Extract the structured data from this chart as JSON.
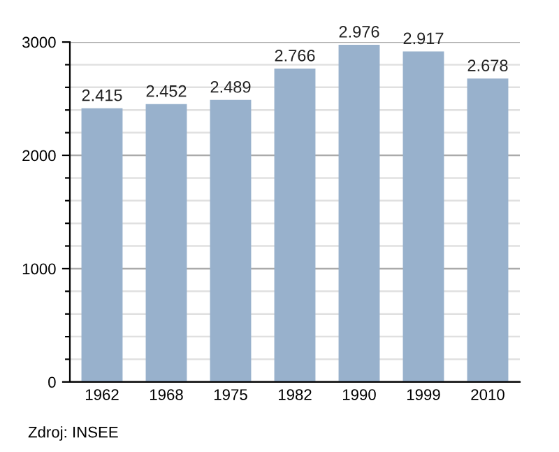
{
  "chart_data": {
    "type": "bar",
    "categories": [
      "1962",
      "1968",
      "1975",
      "1982",
      "1990",
      "1999",
      "2010"
    ],
    "values": [
      2415,
      2452,
      2489,
      2766,
      2976,
      2917,
      2678
    ],
    "value_labels": [
      "2.415",
      "2.452",
      "2.489",
      "2.766",
      "2.976",
      "2.917",
      "2.678"
    ],
    "color": "#98b1cc",
    "ylim": [
      0,
      3000
    ],
    "yticks": [
      0,
      {
        "value": 200,
        "label": null
      },
      {
        "value": 400,
        "label": null
      },
      {
        "value": 600,
        "label": null
      },
      {
        "value": 800,
        "label": null
      },
      1000,
      {
        "value": 1200,
        "label": null
      },
      {
        "value": 1400,
        "label": null
      },
      {
        "value": 1600,
        "label": null
      },
      {
        "value": 1800,
        "label": null
      },
      2000,
      {
        "value": 2200,
        "label": null
      },
      {
        "value": 2400,
        "label": null
      },
      {
        "value": 2600,
        "label": null
      },
      {
        "value": 2800,
        "label": null
      },
      3000
    ],
    "grid": "y",
    "annotations": [
      "Zdroj: INSEE"
    ]
  }
}
